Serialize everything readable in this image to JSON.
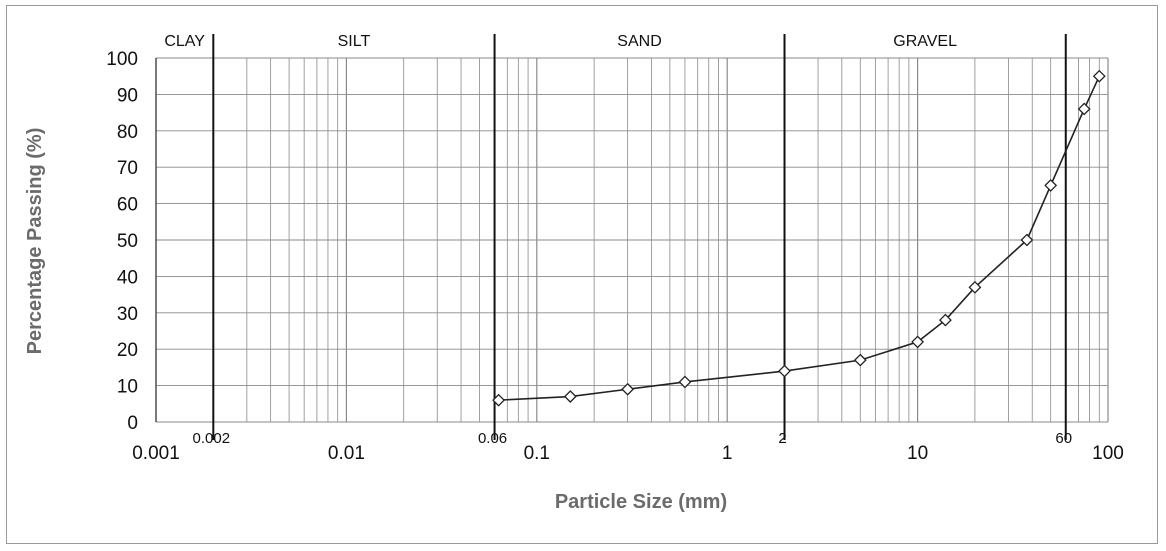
{
  "chart_data": {
    "type": "line",
    "title": "",
    "xlabel": "Particle Size (mm)",
    "ylabel": "Percentage Passing (%)",
    "x_scale": "log",
    "xlim": [
      0.001,
      100
    ],
    "ylim": [
      0,
      100
    ],
    "grid": true,
    "x_tick_labels": [
      "0.001",
      "0.01",
      "0.1",
      "1",
      "10",
      "100"
    ],
    "y_tick_labels": [
      "0",
      "10",
      "20",
      "30",
      "40",
      "50",
      "60",
      "70",
      "80",
      "90",
      "100"
    ],
    "zones": [
      "CLAY",
      "SILT",
      "SAND",
      "GRAVEL"
    ],
    "boundaries": [
      {
        "value": 0.002,
        "label": "0.002"
      },
      {
        "value": 0.06,
        "label": "0.06"
      },
      {
        "value": 2,
        "label": "2"
      },
      {
        "value": 60,
        "label": "60"
      }
    ],
    "series": [
      {
        "x": [
          0.063,
          0.15,
          0.3,
          0.6,
          2,
          5,
          10,
          14,
          20,
          37.5,
          50,
          75,
          90
        ],
        "y": [
          6,
          7,
          9,
          11,
          14,
          17,
          22,
          28,
          37,
          50,
          65,
          86,
          95
        ]
      }
    ],
    "colors": {
      "line": "#222222",
      "marker_fill": "#ffffff",
      "grid": "#8a8a8a",
      "boundary": "#111111",
      "axis_title": "#6b6b6b"
    }
  }
}
